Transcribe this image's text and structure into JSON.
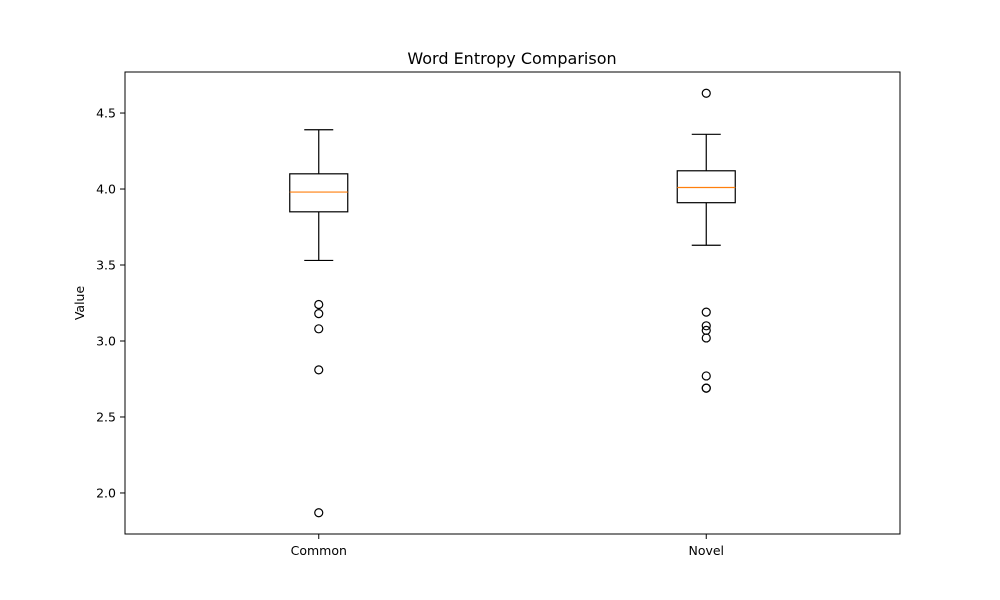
{
  "chart_data": {
    "type": "box",
    "title": "Word Entropy Comparison",
    "xlabel": "",
    "ylabel": "Value",
    "ylim": [
      1.73,
      4.77
    ],
    "yticks": [
      2.0,
      2.5,
      3.0,
      3.5,
      4.0,
      4.5
    ],
    "ytick_labels": [
      "2.0",
      "2.5",
      "3.0",
      "3.5",
      "4.0",
      "4.5"
    ],
    "categories": [
      "Common",
      "Novel"
    ],
    "boxes": [
      {
        "category": "Common",
        "whisker_low": 3.53,
        "q1": 3.85,
        "median": 3.98,
        "q3": 4.1,
        "whisker_high": 4.39,
        "outliers": [
          3.24,
          3.18,
          3.08,
          2.81,
          1.87
        ]
      },
      {
        "category": "Novel",
        "whisker_low": 3.63,
        "q1": 3.91,
        "median": 4.01,
        "q3": 4.12,
        "whisker_high": 4.36,
        "outliers": [
          4.63,
          3.19,
          3.1,
          3.07,
          3.02,
          2.77,
          2.69,
          2.69
        ]
      }
    ],
    "colors": {
      "box": "#000000",
      "median": "#ff7f0e",
      "outlier": "#000000"
    },
    "grid": false
  }
}
